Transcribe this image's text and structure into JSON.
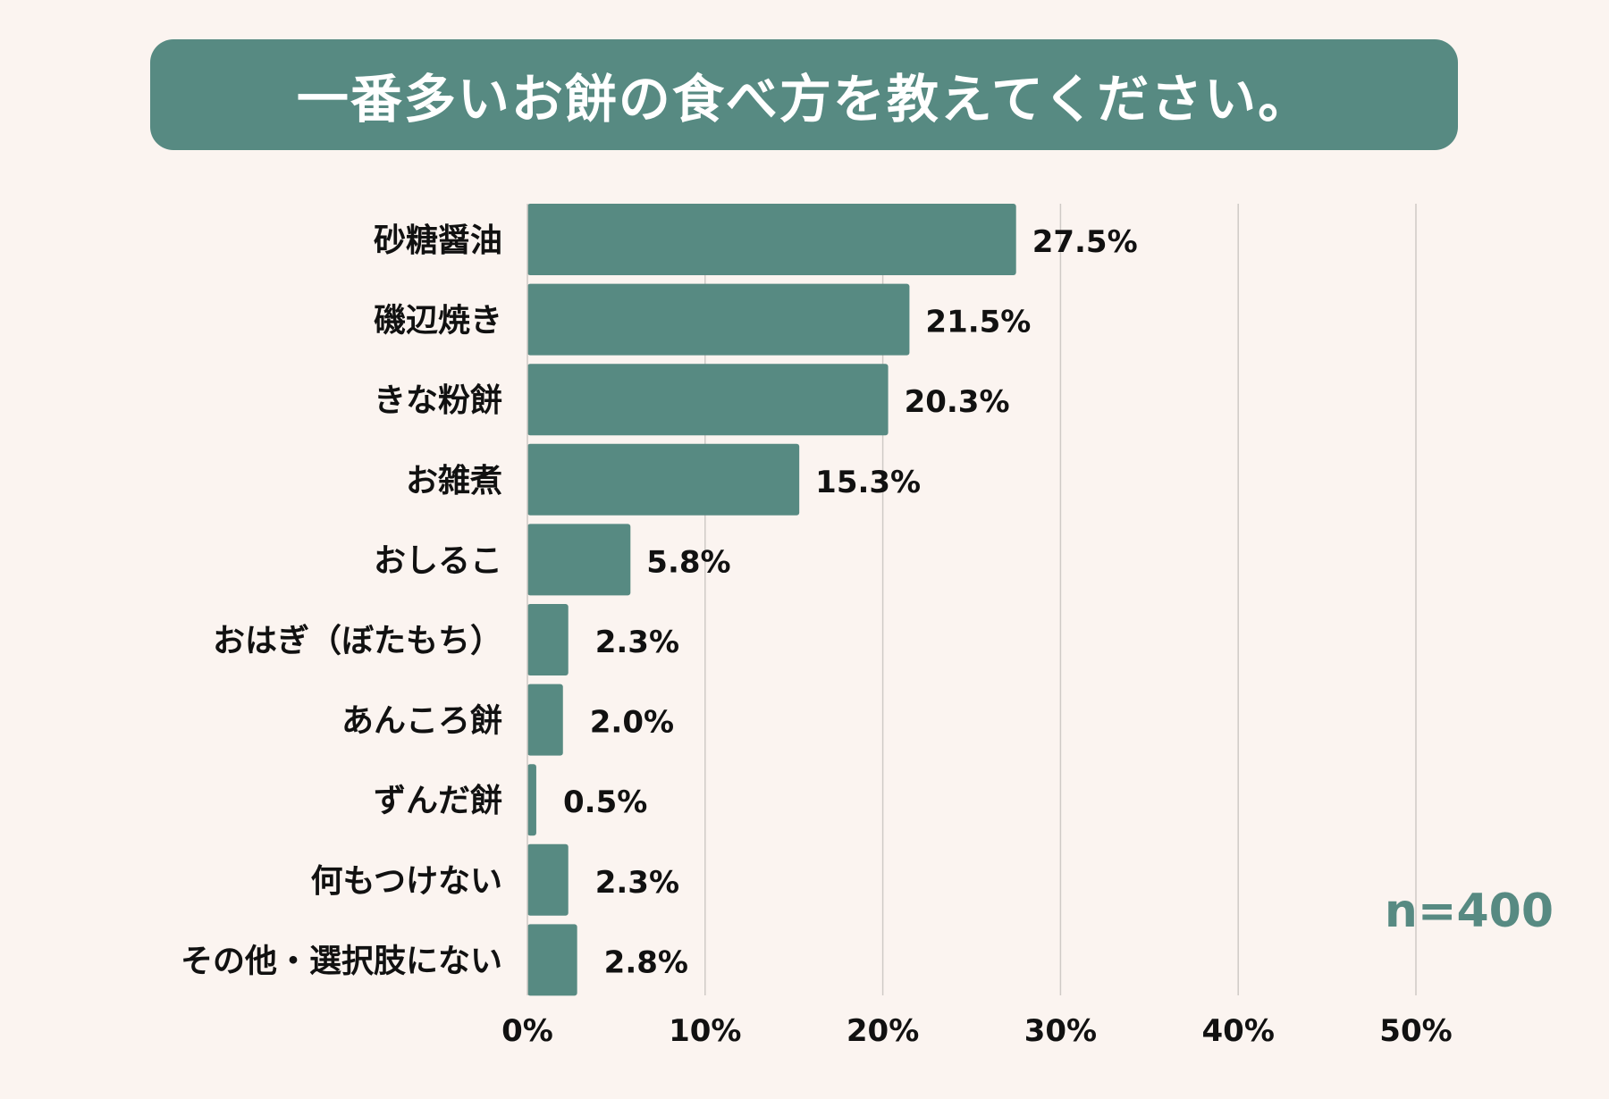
{
  "chart_data": {
    "type": "bar",
    "orientation": "horizontal",
    "title": "一番多いお餅の食べ方を教えてください。",
    "categories": [
      "砂糖醤油",
      "磯辺焼き",
      "きな粉餅",
      "お雑煮",
      "おしるこ",
      "おはぎ（ぼたもち）",
      "あんころ餅",
      "ずんだ餅",
      "何もつけない",
      "その他・選択肢にない"
    ],
    "values": [
      27.5,
      21.5,
      20.3,
      15.3,
      5.8,
      2.3,
      2.0,
      0.5,
      2.3,
      2.8
    ],
    "value_labels": [
      "27.5%",
      "21.5%",
      "20.3%",
      "15.3%",
      "5.8%",
      "2.3%",
      "2.0%",
      "0.5%",
      "2.3%",
      "2.8%"
    ],
    "xlim": [
      0,
      50
    ],
    "xticks": [
      "0%",
      "10%",
      "20%",
      "30%",
      "40%",
      "50%"
    ],
    "grid": true,
    "annotation": "n=400",
    "bar_color": "#578a82",
    "background": "#fbf4f0"
  }
}
